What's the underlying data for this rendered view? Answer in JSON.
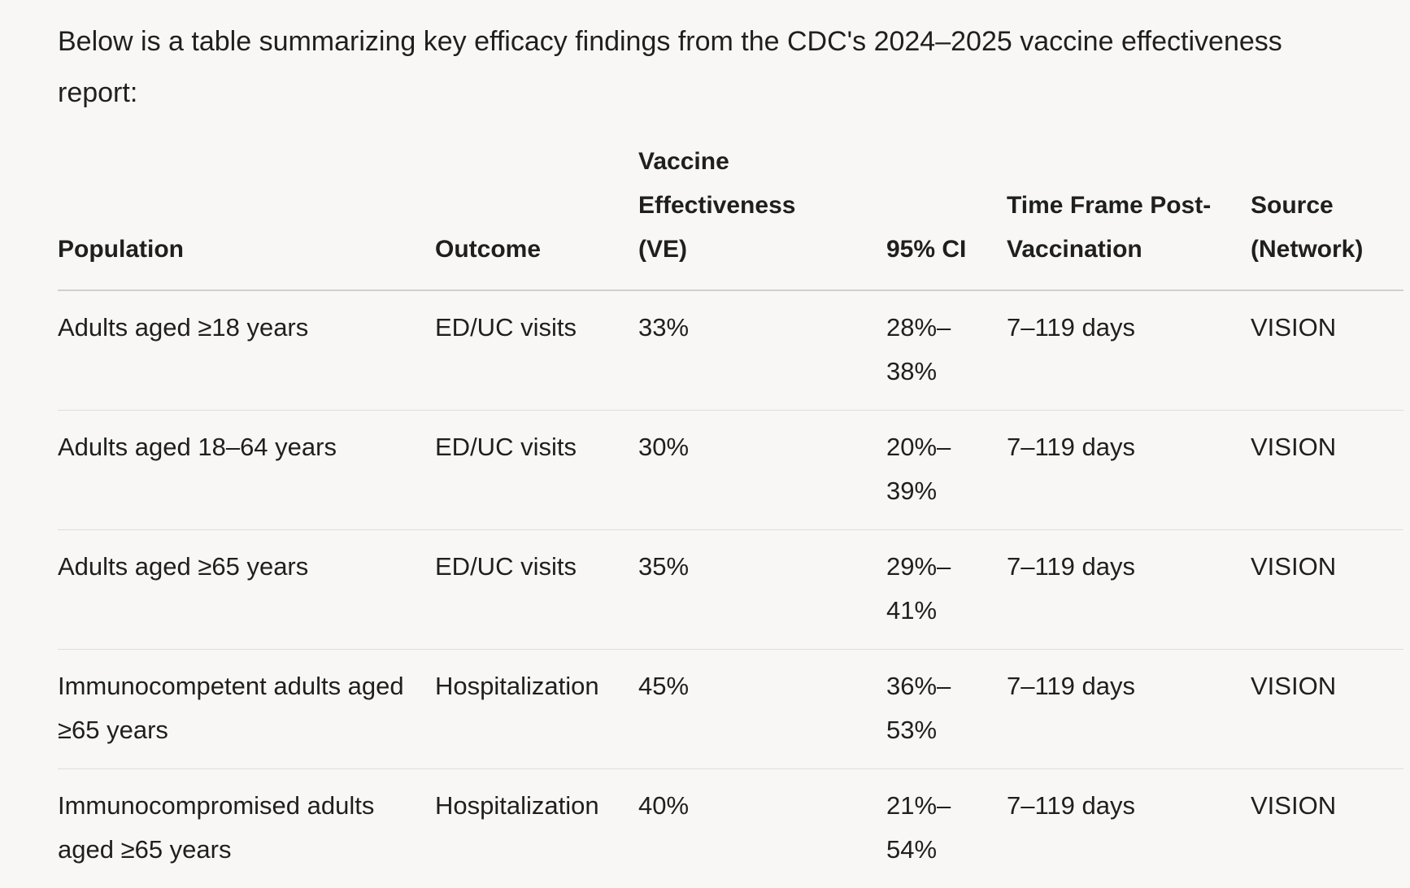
{
  "intro": "Below is a table summarizing key efficacy findings from the CDC's 2024–2025 vaccine effectiveness report:",
  "table": {
    "headers": [
      "Population",
      "Outcome",
      "Vaccine Effectiveness (VE)",
      "95% CI",
      "Time Frame Post-Vaccination",
      "Source (Network)"
    ],
    "rows": [
      {
        "population": "Adults aged ≥18 years",
        "outcome": "ED/UC visits",
        "ve": "33%",
        "ci": "28%–38%",
        "time_frame": "7–119 days",
        "source": "VISION"
      },
      {
        "population": "Adults aged 18–64 years",
        "outcome": "ED/UC visits",
        "ve": "30%",
        "ci": "20%–39%",
        "time_frame": "7–119 days",
        "source": "VISION"
      },
      {
        "population": "Adults aged ≥65 years",
        "outcome": "ED/UC visits",
        "ve": "35%",
        "ci": "29%–41%",
        "time_frame": "7–119 days",
        "source": "VISION"
      },
      {
        "population": "Immunocompetent adults aged ≥65 years",
        "outcome": "Hospitalization",
        "ve": "45%",
        "ci": "36%–53%",
        "time_frame": "7–119 days",
        "source": "VISION"
      },
      {
        "population": "Immunocompromised adults aged ≥65 years",
        "outcome": "Hospitalization",
        "ve": "40%",
        "ci": "21%–54%",
        "time_frame": "7–119 days",
        "source": "VISION"
      }
    ]
  }
}
